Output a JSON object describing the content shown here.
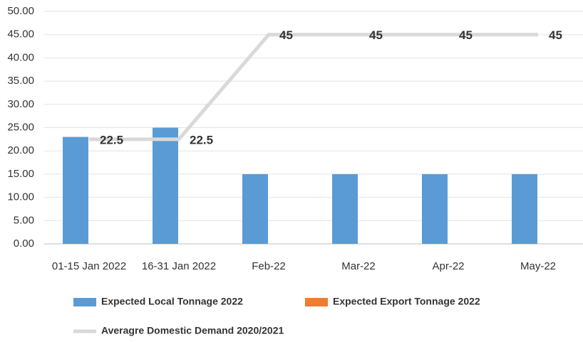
{
  "chart_data": {
    "type": "bar-line",
    "categories": [
      "01-15 Jan 2022",
      "16-31 Jan 2022",
      "Feb-22",
      "Mar-22",
      "Apr-22",
      "May-22"
    ],
    "series": [
      {
        "name": "Expected Local Tonnage 2022",
        "type": "bar",
        "color": "#5b9bd5",
        "values": [
          23,
          25,
          15,
          15,
          15,
          15
        ]
      },
      {
        "name": "Expected  Export Tonnage 2022",
        "type": "bar",
        "color": "#ed7d31",
        "values": [
          0,
          0,
          0,
          0,
          0,
          0
        ]
      },
      {
        "name": "Averagre Domestic Demand 2020/2021",
        "type": "line",
        "color": "#d9d9d9",
        "values": [
          22.5,
          22.5,
          45,
          45,
          45,
          45
        ]
      }
    ],
    "ylim": [
      0,
      50
    ],
    "yticks": [
      {
        "value": 0,
        "label": "0.00"
      },
      {
        "value": 5,
        "label": "5.00"
      },
      {
        "value": 10,
        "label": "10.00"
      },
      {
        "value": 15,
        "label": "15.00"
      },
      {
        "value": 20,
        "label": "20.00"
      },
      {
        "value": 25,
        "label": "25.00"
      },
      {
        "value": 30,
        "label": "30.00"
      },
      {
        "value": 35,
        "label": "35.00"
      },
      {
        "value": 40,
        "label": "40.00"
      },
      {
        "value": 45,
        "label": "45.00"
      },
      {
        "value": 50,
        "label": "50.00"
      }
    ],
    "grid": true,
    "legend": "bottom"
  }
}
